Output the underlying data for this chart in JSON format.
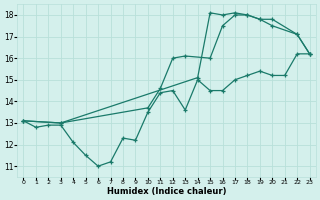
{
  "line1_x": [
    0,
    1,
    2,
    3,
    4,
    5,
    6,
    7,
    8,
    9,
    10,
    11,
    12,
    13,
    14,
    15,
    16,
    17,
    18,
    19,
    20,
    21,
    22,
    23
  ],
  "line1_y": [
    13.1,
    12.8,
    12.9,
    12.9,
    12.1,
    11.5,
    11.0,
    11.2,
    12.3,
    12.2,
    13.5,
    14.4,
    14.5,
    13.6,
    15.0,
    14.5,
    14.5,
    15.0,
    15.2,
    15.4,
    15.2,
    15.2,
    16.2,
    16.2
  ],
  "line2_x": [
    0,
    3,
    10,
    11,
    12,
    13,
    15,
    16,
    17,
    18,
    19,
    20,
    22,
    23
  ],
  "line2_y": [
    13.1,
    13.0,
    13.7,
    14.6,
    16.0,
    16.1,
    16.0,
    17.5,
    18.0,
    18.0,
    17.8,
    17.5,
    17.1,
    16.2
  ],
  "line3_x": [
    0,
    3,
    14,
    15,
    16,
    17,
    18,
    19,
    20,
    22,
    23
  ],
  "line3_y": [
    13.1,
    13.0,
    15.1,
    18.1,
    18.0,
    18.1,
    18.0,
    17.8,
    17.8,
    17.1,
    16.2
  ],
  "color": "#1a7a6a",
  "bg_color": "#d4f0ec",
  "grid_color": "#b8e0da",
  "xlabel": "Humidex (Indice chaleur)",
  "xlim": [
    -0.5,
    23.5
  ],
  "ylim": [
    10.5,
    18.5
  ],
  "yticks": [
    11,
    12,
    13,
    14,
    15,
    16,
    17,
    18
  ],
  "xticks": [
    0,
    1,
    2,
    3,
    4,
    5,
    6,
    7,
    8,
    9,
    10,
    11,
    12,
    13,
    14,
    15,
    16,
    17,
    18,
    19,
    20,
    21,
    22,
    23
  ]
}
